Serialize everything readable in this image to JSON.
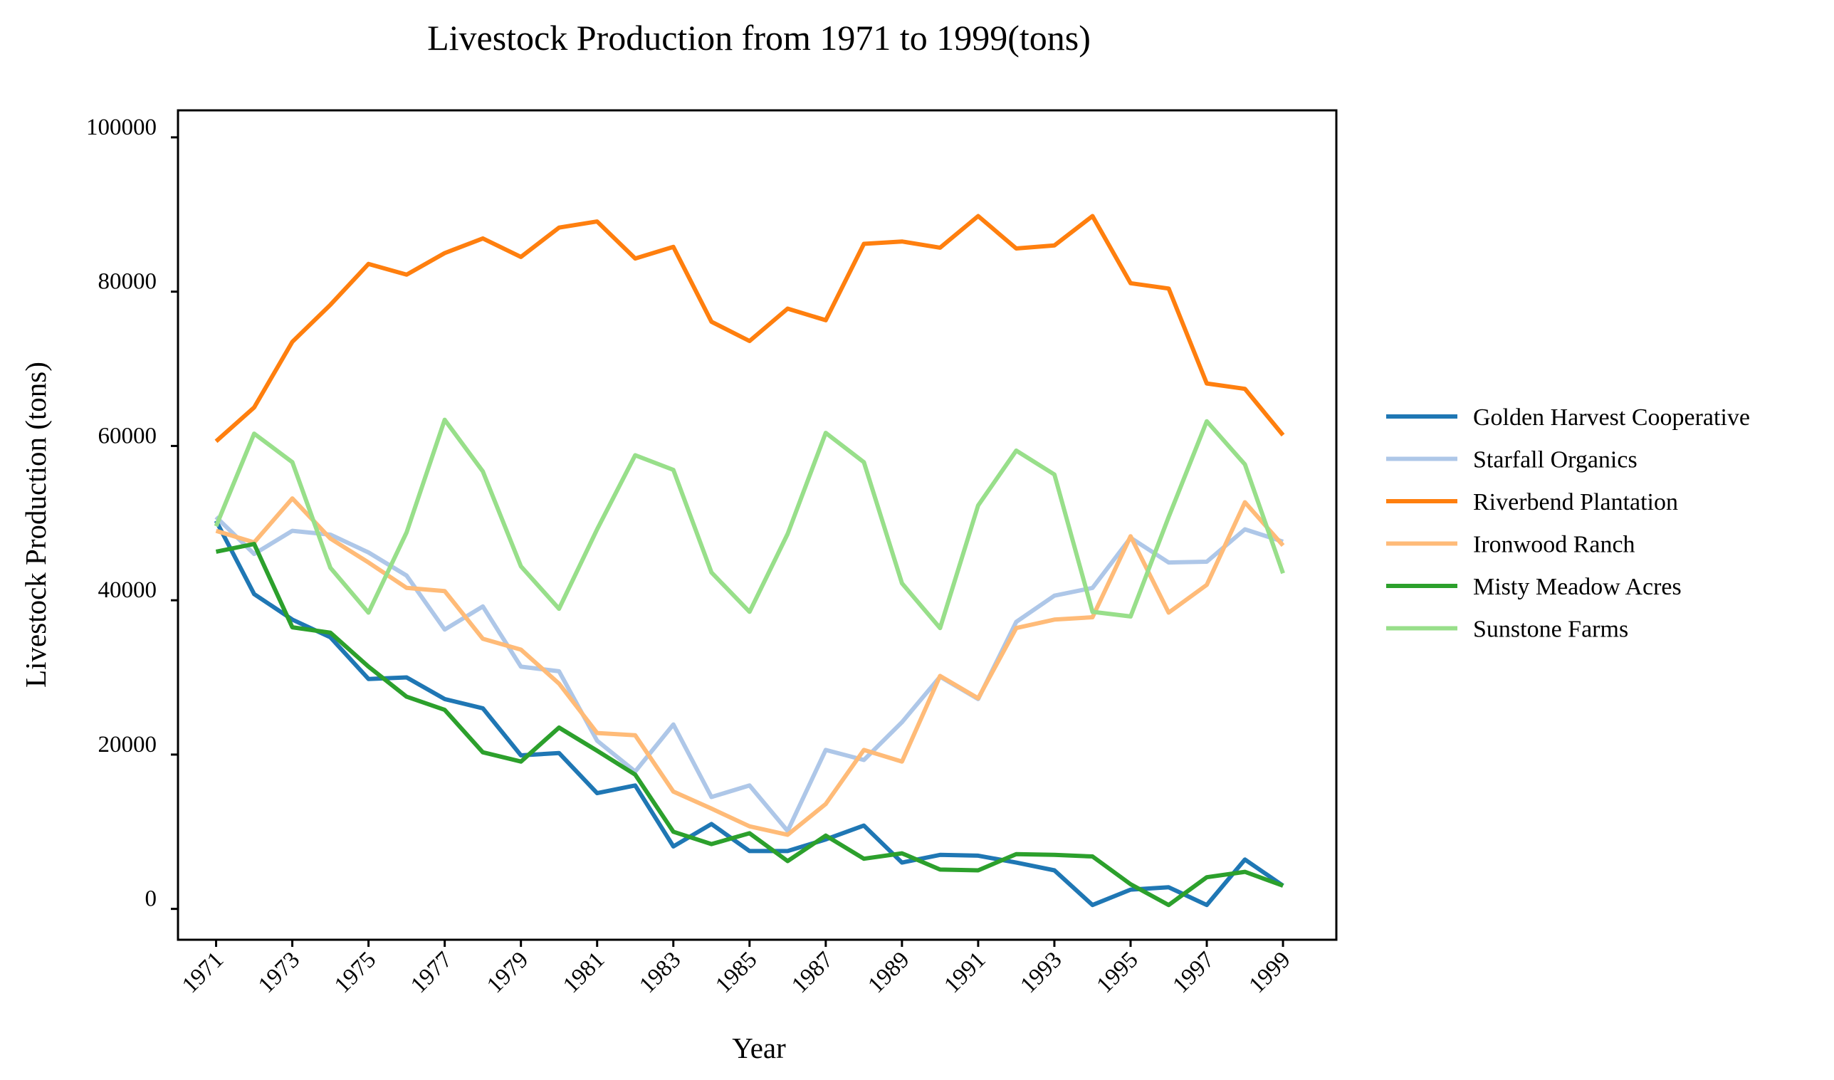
{
  "chart_data": {
    "type": "line",
    "title": "Livestock Production from 1971 to 1999(tons)",
    "xlabel": "Year",
    "ylabel": "Livestock Production (tons)",
    "x": [
      1971,
      1972,
      1973,
      1974,
      1975,
      1976,
      1977,
      1978,
      1979,
      1980,
      1981,
      1982,
      1983,
      1984,
      1985,
      1986,
      1987,
      1988,
      1989,
      1990,
      1991,
      1992,
      1993,
      1994,
      1995,
      1996,
      1997,
      1998,
      1999
    ],
    "x_tick_labels": [
      "1971",
      "1973",
      "1975",
      "1977",
      "1979",
      "1981",
      "1983",
      "1985",
      "1987",
      "1989",
      "1991",
      "1993",
      "1995",
      "1997",
      "1999"
    ],
    "y_tick_labels": [
      "0",
      "20000",
      "40000",
      "60000",
      "80000",
      "100000"
    ],
    "ylim": [
      -4000,
      103500
    ],
    "xlim": [
      1970,
      2000.4
    ],
    "grid": false,
    "legend_position": "right",
    "series": [
      {
        "name": "Golden Harvest Cooperative",
        "color": "#1f77b4",
        "values": [
          50300,
          40800,
          37500,
          35200,
          29800,
          30000,
          27200,
          26000,
          19900,
          20200,
          15000,
          16000,
          8100,
          11000,
          7500,
          7500,
          9000,
          10800,
          6000,
          7000,
          6900,
          6000,
          5000,
          500,
          2500,
          2800,
          500,
          6400,
          3000
        ]
      },
      {
        "name": "Starfall Organics",
        "color": "#aec7e8",
        "values": [
          50800,
          46000,
          49000,
          48500,
          46200,
          43200,
          36200,
          39200,
          31400,
          30800,
          21800,
          17800,
          23900,
          14500,
          16000,
          10100,
          20600,
          19300,
          24200,
          30100,
          27200,
          37200,
          40600,
          41600,
          48100,
          44900,
          45000,
          49200,
          47600
        ]
      },
      {
        "name": "Riverbend Plantation",
        "color": "#ff7f0e",
        "values": [
          60600,
          65000,
          73500,
          78300,
          83600,
          82200,
          85000,
          86900,
          84500,
          88300,
          89100,
          84300,
          85800,
          76100,
          73600,
          77800,
          76300,
          86200,
          86500,
          85700,
          89800,
          85600,
          86000,
          89800,
          81100,
          80400,
          68100,
          67400,
          61400
        ]
      },
      {
        "name": "Ironwood Ranch",
        "color": "#ffbb78",
        "values": [
          49000,
          47500,
          53200,
          48000,
          44900,
          41600,
          41200,
          35000,
          33600,
          29200,
          22800,
          22500,
          15200,
          13000,
          10700,
          9600,
          13600,
          20600,
          19100,
          30200,
          27300,
          36400,
          37500,
          37800,
          48300,
          38400,
          42000,
          52700,
          47100
        ]
      },
      {
        "name": "Misty Meadow Acres",
        "color": "#2ca02c",
        "values": [
          46300,
          47300,
          36500,
          35800,
          31400,
          27500,
          25800,
          20300,
          19100,
          23500,
          20500,
          17400,
          10000,
          8400,
          9800,
          6200,
          9500,
          6500,
          7200,
          5100,
          5000,
          7100,
          7000,
          6800,
          3200,
          500,
          4100,
          4800,
          3000
        ]
      },
      {
        "name": "Sunstone Farms",
        "color": "#98df8a",
        "values": [
          49600,
          61600,
          57900,
          44200,
          38400,
          48800,
          63400,
          56700,
          44400,
          38900,
          49200,
          58800,
          56900,
          43600,
          38500,
          48600,
          61700,
          57900,
          42200,
          36400,
          52300,
          59400,
          56300,
          38500,
          37900,
          50800,
          63200,
          57600,
          43500
        ]
      }
    ]
  }
}
